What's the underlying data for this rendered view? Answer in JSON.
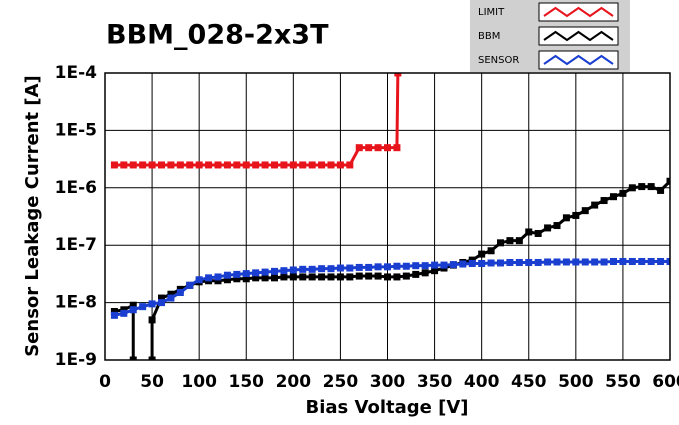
{
  "chart_data": {
    "type": "line",
    "title": "BBM_028-2x3T",
    "x_label": "Bias Voltage [V]",
    "y_label": "Sensor Leakage Current [A]",
    "xlim": [
      0,
      600
    ],
    "xticks": [
      0,
      50,
      100,
      150,
      200,
      250,
      300,
      350,
      400,
      450,
      500,
      550,
      600
    ],
    "ylim": [
      1e-09,
      0.0001
    ],
    "log_y": true,
    "yticks": [
      {
        "value": 1e-09,
        "label": "1E-9"
      },
      {
        "value": 1e-08,
        "label": "1E-8"
      },
      {
        "value": 1e-07,
        "label": "1E-7"
      },
      {
        "value": 1e-06,
        "label": "1E-6"
      },
      {
        "value": 1e-05,
        "label": "1E-5"
      },
      {
        "value": 0.0001,
        "label": "1E-4"
      }
    ],
    "grid": true,
    "legend": "top-right",
    "series": [
      {
        "name": "LIMIT",
        "color": "#e8141c",
        "x": [
          10,
          20,
          30,
          40,
          50,
          60,
          70,
          80,
          90,
          100,
          110,
          120,
          130,
          140,
          150,
          160,
          170,
          180,
          190,
          200,
          210,
          220,
          230,
          240,
          250,
          260,
          270,
          280,
          290,
          300,
          310,
          311
        ],
        "values": [
          2.5e-06,
          2.5e-06,
          2.5e-06,
          2.5e-06,
          2.5e-06,
          2.5e-06,
          2.5e-06,
          2.5e-06,
          2.5e-06,
          2.5e-06,
          2.5e-06,
          2.5e-06,
          2.5e-06,
          2.5e-06,
          2.5e-06,
          2.5e-06,
          2.5e-06,
          2.5e-06,
          2.5e-06,
          2.5e-06,
          2.5e-06,
          2.5e-06,
          2.5e-06,
          2.5e-06,
          2.5e-06,
          2.5e-06,
          5e-06,
          5e-06,
          5e-06,
          5e-06,
          5e-06,
          0.0001
        ]
      },
      {
        "name": "BBM",
        "color": "#000000",
        "x": [
          10,
          20,
          30,
          30,
          40,
          50,
          50,
          60,
          70,
          80,
          90,
          100,
          110,
          120,
          130,
          140,
          150,
          160,
          170,
          180,
          190,
          200,
          210,
          220,
          230,
          240,
          250,
          260,
          270,
          280,
          290,
          300,
          310,
          320,
          330,
          340,
          350,
          360,
          370,
          380,
          390,
          400,
          410,
          420,
          430,
          440,
          450,
          460,
          470,
          480,
          490,
          500,
          510,
          520,
          530,
          540,
          550,
          560,
          570,
          580,
          590,
          600
        ],
        "values": [
          7e-09,
          7.5e-09,
          9e-09,
          1e-09,
          null,
          1e-09,
          5e-09,
          1.2e-08,
          1.4e-08,
          1.7e-08,
          2e-08,
          2.3e-08,
          2.4e-08,
          2.4e-08,
          2.5e-08,
          2.6e-08,
          2.6e-08,
          2.7e-08,
          2.7e-08,
          2.7e-08,
          2.8e-08,
          2.8e-08,
          2.8e-08,
          2.8e-08,
          2.8e-08,
          2.8e-08,
          2.8e-08,
          2.8e-08,
          2.9e-08,
          2.9e-08,
          2.9e-08,
          2.8e-08,
          2.8e-08,
          2.9e-08,
          3.1e-08,
          3.3e-08,
          3.6e-08,
          4e-08,
          4.5e-08,
          5e-08,
          5.5e-08,
          7e-08,
          8e-08,
          1.1e-07,
          1.2e-07,
          1.2e-07,
          1.7e-07,
          1.6e-07,
          2e-07,
          2.2e-07,
          3e-07,
          3.3e-07,
          4e-07,
          5e-07,
          6e-07,
          7e-07,
          8e-07,
          1e-06,
          1.05e-06,
          1.05e-06,
          9e-07,
          1.3e-06
        ]
      },
      {
        "name": "SENSOR",
        "color": "#1a3fd0",
        "x": [
          10,
          20,
          30,
          40,
          50,
          60,
          70,
          80,
          90,
          100,
          110,
          120,
          130,
          140,
          150,
          160,
          170,
          180,
          190,
          200,
          210,
          220,
          230,
          240,
          250,
          260,
          270,
          280,
          290,
          300,
          310,
          320,
          330,
          340,
          350,
          360,
          370,
          380,
          390,
          400,
          410,
          420,
          430,
          440,
          450,
          460,
          470,
          480,
          490,
          500,
          510,
          520,
          530,
          540,
          550,
          560,
          570,
          580,
          590,
          600
        ],
        "values": [
          6e-09,
          6.5e-09,
          7.5e-09,
          8.5e-09,
          9.5e-09,
          1e-08,
          1.2e-08,
          1.5e-08,
          2e-08,
          2.5e-08,
          2.7e-08,
          2.8e-08,
          3e-08,
          3.1e-08,
          3.2e-08,
          3.3e-08,
          3.4e-08,
          3.5e-08,
          3.6e-08,
          3.7e-08,
          3.8e-08,
          3.8e-08,
          3.9e-08,
          3.9e-08,
          4e-08,
          4e-08,
          4.1e-08,
          4.1e-08,
          4.2e-08,
          4.2e-08,
          4.3e-08,
          4.3e-08,
          4.4e-08,
          4.4e-08,
          4.5e-08,
          4.5e-08,
          4.6e-08,
          4.7e-08,
          4.8e-08,
          4.8e-08,
          4.9e-08,
          4.9e-08,
          5e-08,
          5e-08,
          5e-08,
          5e-08,
          5.1e-08,
          5.1e-08,
          5.1e-08,
          5.1e-08,
          5.1e-08,
          5.1e-08,
          5.1e-08,
          5.2e-08,
          5.2e-08,
          5.2e-08,
          5.2e-08,
          5.2e-08,
          5.2e-08,
          5.2e-08
        ]
      }
    ]
  }
}
